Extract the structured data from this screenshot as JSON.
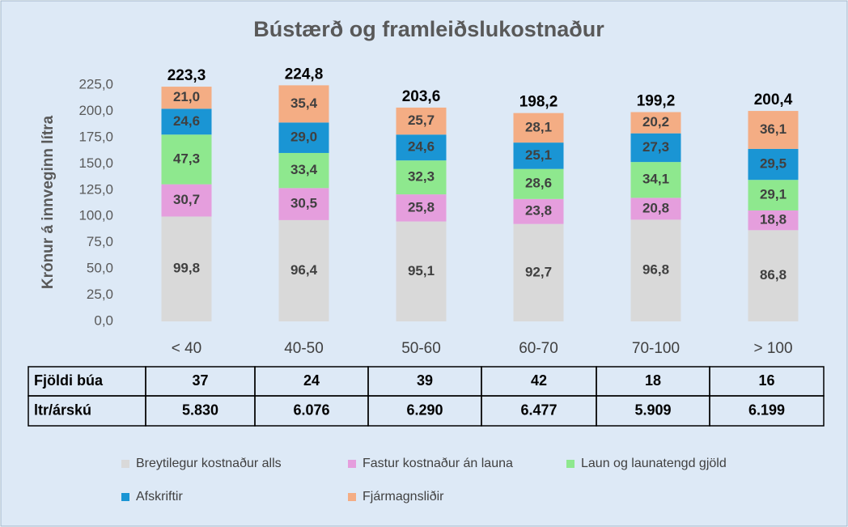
{
  "chart_data": {
    "type": "stacked_bar",
    "title": "Bústærð og framleiðslukostnaður",
    "y_label": "Krónur á innveginn lítra",
    "categories": [
      "< 40",
      "40-50",
      "50-60",
      "60-70",
      "70-100",
      "> 100"
    ],
    "series": [
      {
        "name": "Breytilegur kostnaður alls",
        "color": "#d9d9d9",
        "values": [
          99.8,
          96.4,
          95.1,
          92.7,
          96.8,
          86.8
        ],
        "value_labels": [
          "99,8",
          "96,4",
          "95,1",
          "92,7",
          "96,8",
          "86,8"
        ]
      },
      {
        "name": "Fastur kostnaður án launa",
        "color": "#e59edd",
        "values": [
          30.7,
          30.5,
          25.8,
          23.8,
          20.8,
          18.8
        ],
        "value_labels": [
          "30,7",
          "30,5",
          "25,8",
          "23,8",
          "20,8",
          "18,8"
        ]
      },
      {
        "name": "Laun og launatengd gjöld",
        "color": "#8ee88e",
        "values": [
          47.3,
          33.4,
          32.3,
          28.6,
          34.1,
          29.1
        ],
        "value_labels": [
          "47,3",
          "33,4",
          "32,3",
          "28,6",
          "34,1",
          "29,1"
        ]
      },
      {
        "name": "Afskriftir",
        "color": "#1a95d4",
        "values": [
          24.6,
          29.0,
          24.6,
          25.1,
          27.3,
          29.5
        ],
        "value_labels": [
          "24,6",
          "29,0",
          "24,6",
          "25,1",
          "27,3",
          "29,5"
        ]
      },
      {
        "name": "Fjármagnsliðir",
        "color": "#f4ad84",
        "values": [
          21.0,
          35.4,
          25.7,
          28.1,
          20.2,
          36.1
        ],
        "value_labels": [
          "21,0",
          "35,4",
          "25,7",
          "28,1",
          "20,2",
          "36,1"
        ]
      }
    ],
    "totals": [
      223.3,
      224.8,
      203.6,
      198.2,
      199.2,
      200.4
    ],
    "total_labels": [
      "223,3",
      "224,8",
      "203,6",
      "198,2",
      "199,2",
      "200,4"
    ],
    "ylim": [
      0,
      225
    ],
    "yticks": [
      {
        "value": 0,
        "label": "0,0"
      },
      {
        "value": 25,
        "label": "25,0"
      },
      {
        "value": 50,
        "label": "50,0"
      },
      {
        "value": 75,
        "label": "75,0"
      },
      {
        "value": 100,
        "label": "100,0"
      },
      {
        "value": 125,
        "label": "125,0"
      },
      {
        "value": 150,
        "label": "150,0"
      },
      {
        "value": 175,
        "label": "175,0"
      },
      {
        "value": 200,
        "label": "200,0"
      },
      {
        "value": 225,
        "label": "225,0"
      }
    ],
    "grid": false,
    "table": {
      "rows": [
        {
          "label": "Fjöldi búa",
          "values": [
            37,
            24,
            39,
            42,
            18,
            16
          ]
        },
        {
          "label": "ltr/árskú",
          "values": [
            5830,
            6076,
            6290,
            6477,
            5909,
            6199
          ],
          "value_labels": [
            "5.830",
            "6.076",
            "6.290",
            "6.477",
            "5.909",
            "6.199"
          ]
        }
      ]
    }
  }
}
